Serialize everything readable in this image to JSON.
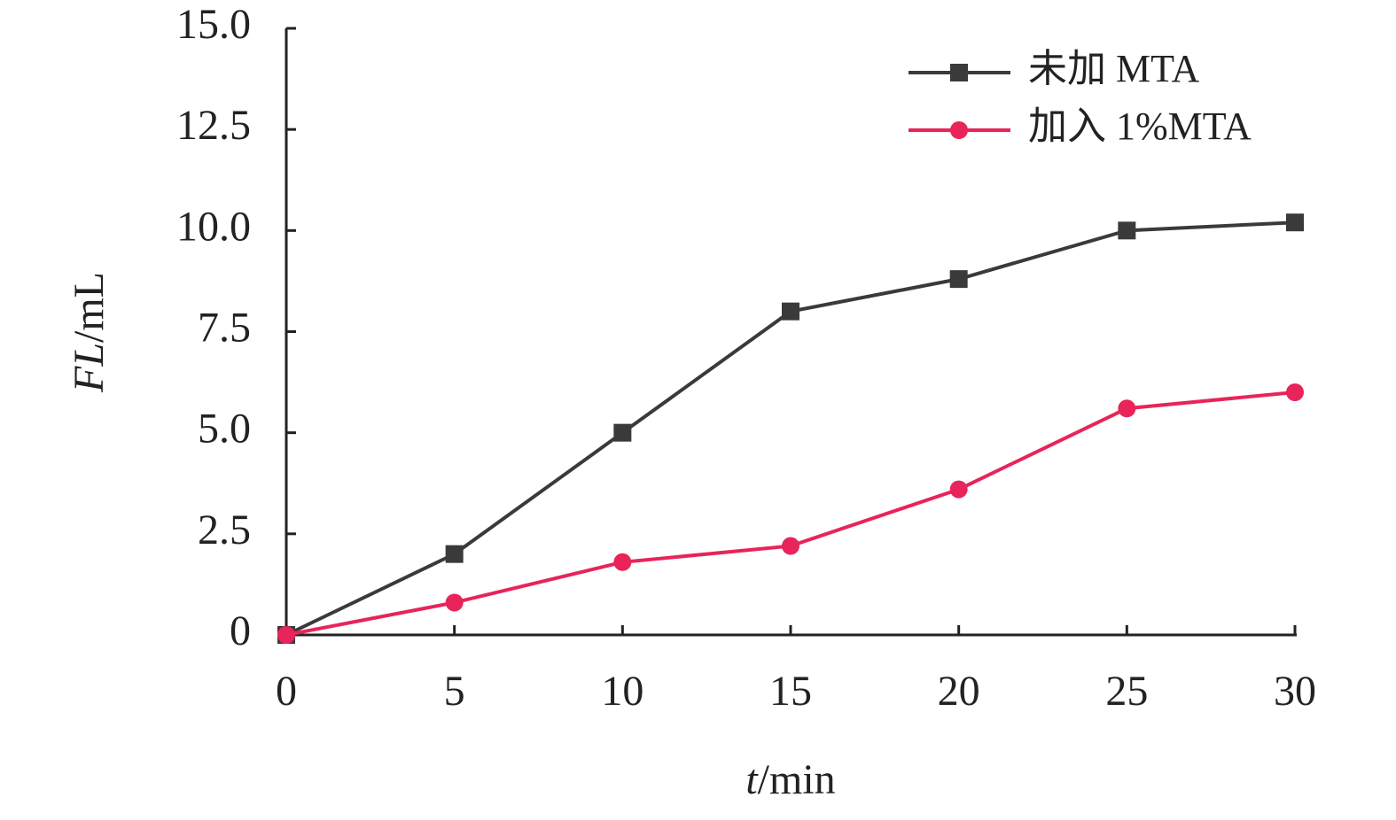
{
  "chart_data": {
    "type": "line",
    "x_label": "t/min",
    "y_label": "FL/mL",
    "x": [
      0,
      5,
      10,
      15,
      20,
      25,
      30
    ],
    "series": [
      {
        "name": "未加 MTA",
        "color": "#3a3a3a",
        "marker": "square",
        "values": [
          0,
          2,
          5,
          8,
          8.8,
          10,
          10.2
        ]
      },
      {
        "name": "加入 1%MTA",
        "color": "#e8245a",
        "marker": "circle",
        "values": [
          0,
          0.8,
          1.8,
          2.2,
          3.6,
          5.6,
          6.0
        ]
      }
    ],
    "xlim": [
      0,
      30
    ],
    "xticks": [
      0,
      5,
      10,
      15,
      20,
      25,
      30
    ],
    "ylim": [
      0,
      15
    ],
    "yticks": [
      0,
      2.5,
      {
        "value": 5,
        "label": "5.0"
      },
      7.5,
      {
        "value": 10,
        "label": "10.0"
      },
      12.5,
      {
        "value": 15,
        "label": "15.0"
      }
    ],
    "grid": false,
    "legend": "upper right"
  }
}
